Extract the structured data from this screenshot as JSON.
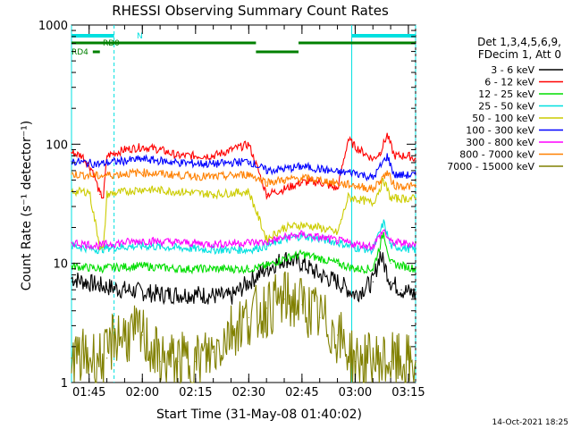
{
  "chart_data": {
    "type": "line",
    "title": "RHESSI Observing Summary Count Rates",
    "xlabel": "Start Time (31-May-08 01:40:02)",
    "ylabel": "Count Rate (s⁻¹ detector⁻¹)",
    "y_scale": "log",
    "ylim": [
      1,
      1000
    ],
    "xlim_minutes_after_0140": [
      0,
      97
    ],
    "x_ticks": [
      "01:45",
      "02:00",
      "02:15",
      "02:30",
      "02:45",
      "03:00",
      "03:15"
    ],
    "y_ticks": [
      "1",
      "10",
      "100",
      "1000"
    ],
    "grid": false,
    "legend_placement": "right",
    "legend_header": [
      "Det 1,3,4,5,6,9,",
      "FDecim 1, Att 0"
    ],
    "timestamp": "14-Oct-2021 18:25",
    "flag_labels": [
      {
        "text": "N",
        "color": "#00e0e0"
      },
      {
        "text": "RD0",
        "color": "#008000"
      },
      {
        "text": "RD4",
        "color": "#008000"
      }
    ],
    "series": [
      {
        "name": "3 - 6 keV",
        "color": "#000000",
        "points": [
          [
            0,
            7.5
          ],
          [
            8,
            6.5
          ],
          [
            15,
            6
          ],
          [
            25,
            5.5
          ],
          [
            35,
            5.5
          ],
          [
            45,
            5.2
          ],
          [
            50,
            7
          ],
          [
            55,
            9
          ],
          [
            60,
            11
          ],
          [
            65,
            10
          ],
          [
            70,
            8
          ],
          [
            75,
            7
          ],
          [
            80,
            5.5
          ],
          [
            85,
            7
          ],
          [
            87,
            12
          ],
          [
            90,
            7
          ],
          [
            93,
            6
          ],
          [
            97,
            5.5
          ]
        ]
      },
      {
        "name": "6 - 12 keV",
        "color": "#ff0000",
        "points": [
          [
            0,
            85
          ],
          [
            3,
            80
          ],
          [
            6,
            60
          ],
          [
            8,
            38
          ],
          [
            9,
            36
          ],
          [
            10,
            80
          ],
          [
            15,
            90
          ],
          [
            20,
            95
          ],
          [
            25,
            90
          ],
          [
            30,
            80
          ],
          [
            40,
            80
          ],
          [
            50,
            100
          ],
          [
            55,
            38
          ],
          [
            60,
            42
          ],
          [
            65,
            48
          ],
          [
            70,
            48
          ],
          [
            75,
            42
          ],
          [
            78,
            110
          ],
          [
            80,
            95
          ],
          [
            85,
            75
          ],
          [
            87,
            85
          ],
          [
            89,
            120
          ],
          [
            91,
            80
          ],
          [
            95,
            80
          ],
          [
            97,
            75
          ]
        ]
      },
      {
        "name": "12 - 25 keV",
        "color": "#00dd00",
        "points": [
          [
            0,
            9.5
          ],
          [
            8,
            9
          ],
          [
            10,
            9.2
          ],
          [
            20,
            9.5
          ],
          [
            30,
            9
          ],
          [
            40,
            9
          ],
          [
            50,
            9
          ],
          [
            55,
            9.5
          ],
          [
            60,
            11
          ],
          [
            65,
            12
          ],
          [
            70,
            11
          ],
          [
            75,
            10
          ],
          [
            80,
            9
          ],
          [
            85,
            9
          ],
          [
            88,
            18
          ],
          [
            90,
            10
          ],
          [
            97,
            9
          ]
        ]
      },
      {
        "name": "25 - 50 keV",
        "color": "#00e0e0",
        "points": [
          [
            0,
            14
          ],
          [
            8,
            13
          ],
          [
            10,
            13.5
          ],
          [
            20,
            14
          ],
          [
            30,
            13.5
          ],
          [
            40,
            13
          ],
          [
            50,
            13
          ],
          [
            55,
            14
          ],
          [
            60,
            16
          ],
          [
            65,
            17
          ],
          [
            70,
            16
          ],
          [
            75,
            15
          ],
          [
            80,
            13.5
          ],
          [
            85,
            13
          ],
          [
            88,
            22
          ],
          [
            90,
            14
          ],
          [
            97,
            13
          ]
        ]
      },
      {
        "name": "50 - 100 keV",
        "color": "#cccc00",
        "points": [
          [
            0,
            40
          ],
          [
            5,
            40
          ],
          [
            8,
            14
          ],
          [
            9,
            13
          ],
          [
            10,
            38
          ],
          [
            20,
            42
          ],
          [
            30,
            40
          ],
          [
            40,
            38
          ],
          [
            50,
            40
          ],
          [
            55,
            16
          ],
          [
            60,
            20
          ],
          [
            65,
            21
          ],
          [
            70,
            20
          ],
          [
            75,
            18
          ],
          [
            78,
            36
          ],
          [
            80,
            35
          ],
          [
            85,
            32
          ],
          [
            88,
            50
          ],
          [
            90,
            35
          ],
          [
            97,
            35
          ]
        ]
      },
      {
        "name": "100 - 300 keV",
        "color": "#0000ff",
        "points": [
          [
            0,
            72
          ],
          [
            8,
            68
          ],
          [
            10,
            70
          ],
          [
            20,
            75
          ],
          [
            30,
            70
          ],
          [
            40,
            68
          ],
          [
            50,
            72
          ],
          [
            55,
            60
          ],
          [
            60,
            62
          ],
          [
            65,
            65
          ],
          [
            70,
            62
          ],
          [
            75,
            58
          ],
          [
            80,
            58
          ],
          [
            85,
            52
          ],
          [
            89,
            80
          ],
          [
            91,
            55
          ],
          [
            97,
            55
          ]
        ]
      },
      {
        "name": "300 - 800 keV",
        "color": "#ff00ff",
        "points": [
          [
            0,
            15
          ],
          [
            8,
            14
          ],
          [
            10,
            14.5
          ],
          [
            20,
            15.5
          ],
          [
            30,
            15
          ],
          [
            40,
            14.5
          ],
          [
            50,
            15
          ],
          [
            55,
            15
          ],
          [
            60,
            16.5
          ],
          [
            65,
            17.5
          ],
          [
            70,
            16.5
          ],
          [
            75,
            15.5
          ],
          [
            80,
            14.5
          ],
          [
            85,
            14
          ],
          [
            88,
            19
          ],
          [
            90,
            15
          ],
          [
            97,
            14.5
          ]
        ]
      },
      {
        "name": "800 - 7000 keV",
        "color": "#ff8000",
        "points": [
          [
            0,
            56
          ],
          [
            8,
            54
          ],
          [
            10,
            55
          ],
          [
            20,
            58
          ],
          [
            30,
            55
          ],
          [
            40,
            53
          ],
          [
            50,
            56
          ],
          [
            55,
            48
          ],
          [
            60,
            50
          ],
          [
            65,
            52
          ],
          [
            70,
            50
          ],
          [
            75,
            47
          ],
          [
            80,
            45
          ],
          [
            85,
            42
          ],
          [
            89,
            58
          ],
          [
            91,
            45
          ],
          [
            97,
            44
          ]
        ]
      },
      {
        "name": "7000 - 15000 keV",
        "color": "#808000",
        "points": [
          [
            0,
            1.6
          ],
          [
            10,
            1.6
          ],
          [
            12,
            2.5
          ],
          [
            20,
            2.5
          ],
          [
            25,
            1.5
          ],
          [
            30,
            1.5
          ],
          [
            35,
            1.5
          ],
          [
            40,
            1.8
          ],
          [
            45,
            2.8
          ],
          [
            50,
            3.5
          ],
          [
            55,
            4.2
          ],
          [
            60,
            5
          ],
          [
            65,
            4.5
          ],
          [
            70,
            3.5
          ],
          [
            75,
            2.5
          ],
          [
            80,
            1.5
          ],
          [
            90,
            1.5
          ],
          [
            97,
            1.4
          ]
        ]
      }
    ],
    "shaded_event_lines_minutes": [
      0,
      12,
      79,
      97
    ]
  }
}
